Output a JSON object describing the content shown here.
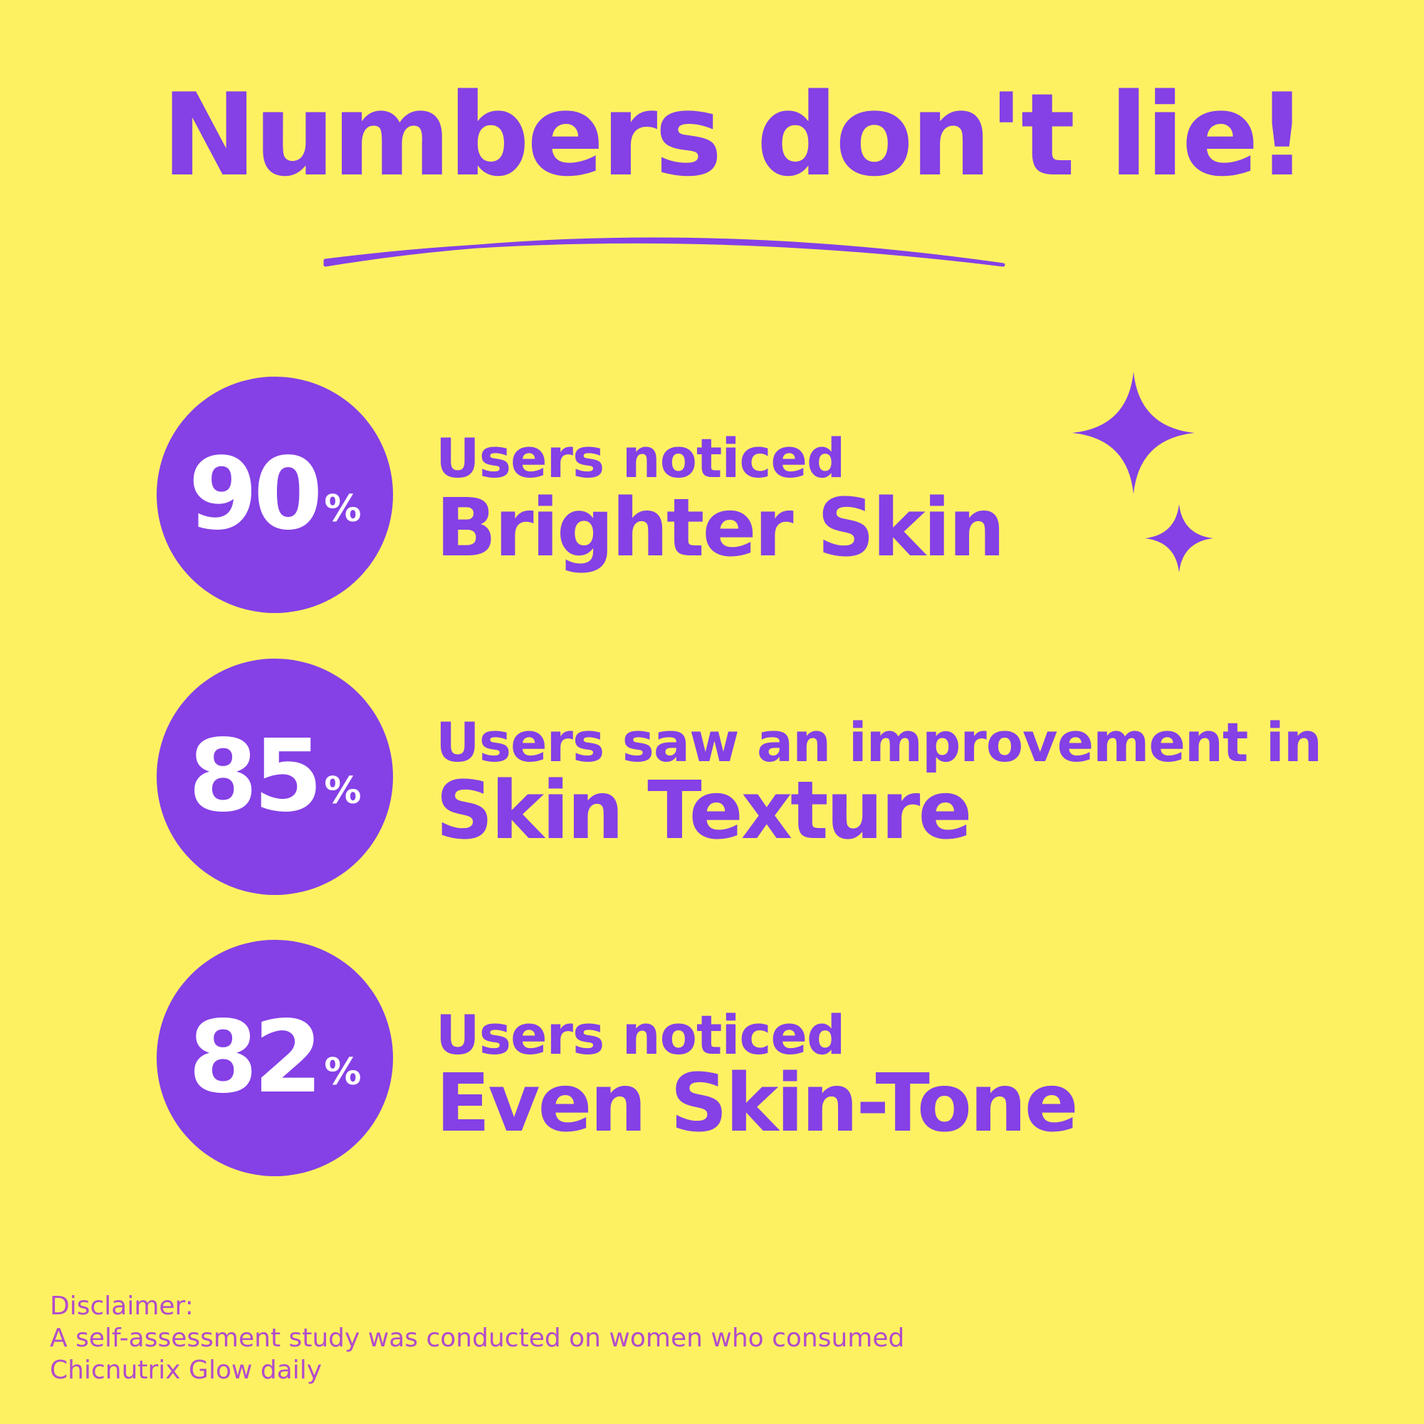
{
  "title": "Numbers don't lie!",
  "colors": {
    "background": "#fdf162",
    "accent": "#8540e6",
    "disclaimer": "#b24ccb",
    "circle_text": "#ffffff"
  },
  "stats": [
    {
      "value": "90",
      "unit": "%",
      "lead": "Users noticed",
      "highlight": "Brighter Skin"
    },
    {
      "value": "85",
      "unit": "%",
      "lead": "Users saw an improvement in",
      "highlight": "Skin Texture"
    },
    {
      "value": "82",
      "unit": "%",
      "lead": "Users noticed",
      "highlight": "Even Skin-Tone"
    }
  ],
  "decorations": [
    "sparkle-icon",
    "sparkle-icon",
    "underline-swoosh"
  ],
  "disclaimer": {
    "heading": "Disclaimer:",
    "line1": "A self-assessment study was conducted on women who consumed",
    "line2": "Chicnutrix Glow daily"
  }
}
